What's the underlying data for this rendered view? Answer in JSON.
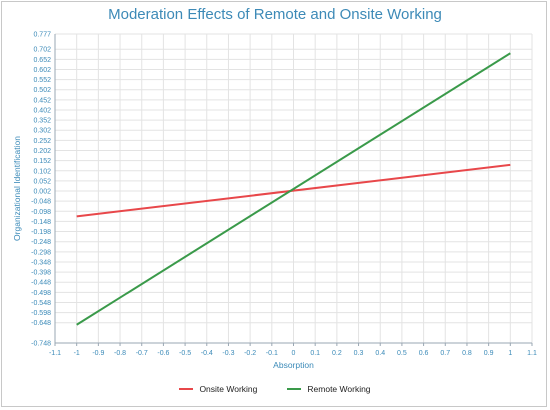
{
  "chart_data": {
    "type": "line",
    "title": "Moderation Effects of Remote and Onsite Working",
    "xlabel": "Absorption",
    "ylabel": "Organizational Identification",
    "xlim": [
      -1.1,
      1.1
    ],
    "ylim": [
      -0.748,
      0.777
    ],
    "x_ticks": [
      "-1.1",
      "-1",
      "-0.9",
      "-0.8",
      "-0.7",
      "-0.6",
      "-0.5",
      "-0.4",
      "-0.3",
      "-0.2",
      "-0.1",
      "0",
      "0.1",
      "0.2",
      "0.3",
      "0.4",
      "0.5",
      "0.6",
      "0.7",
      "0.8",
      "0.9",
      "1",
      "1.1"
    ],
    "y_ticks": [
      "0.777",
      "0.702",
      "0.652",
      "0.602",
      "0.552",
      "0.502",
      "0.452",
      "0.402",
      "0.352",
      "0.302",
      "0.252",
      "0.202",
      "0.152",
      "0.102",
      "0.052",
      "0.002",
      "-0.048",
      "-0.098",
      "-0.148",
      "-0.198",
      "-0.248",
      "-0.298",
      "-0.348",
      "-0.398",
      "-0.448",
      "-0.498",
      "-0.548",
      "-0.598",
      "-0.648",
      "-0.748"
    ],
    "grid": true,
    "legend_position": "bottom",
    "series": [
      {
        "name": "Onsite Working",
        "color": "#e8474a",
        "x": [
          -1,
          1
        ],
        "y": [
          -0.123,
          0.131
        ]
      },
      {
        "name": "Remote Working",
        "color": "#3a9a4a",
        "x": [
          -1,
          1
        ],
        "y": [
          -0.658,
          0.682
        ]
      }
    ]
  }
}
